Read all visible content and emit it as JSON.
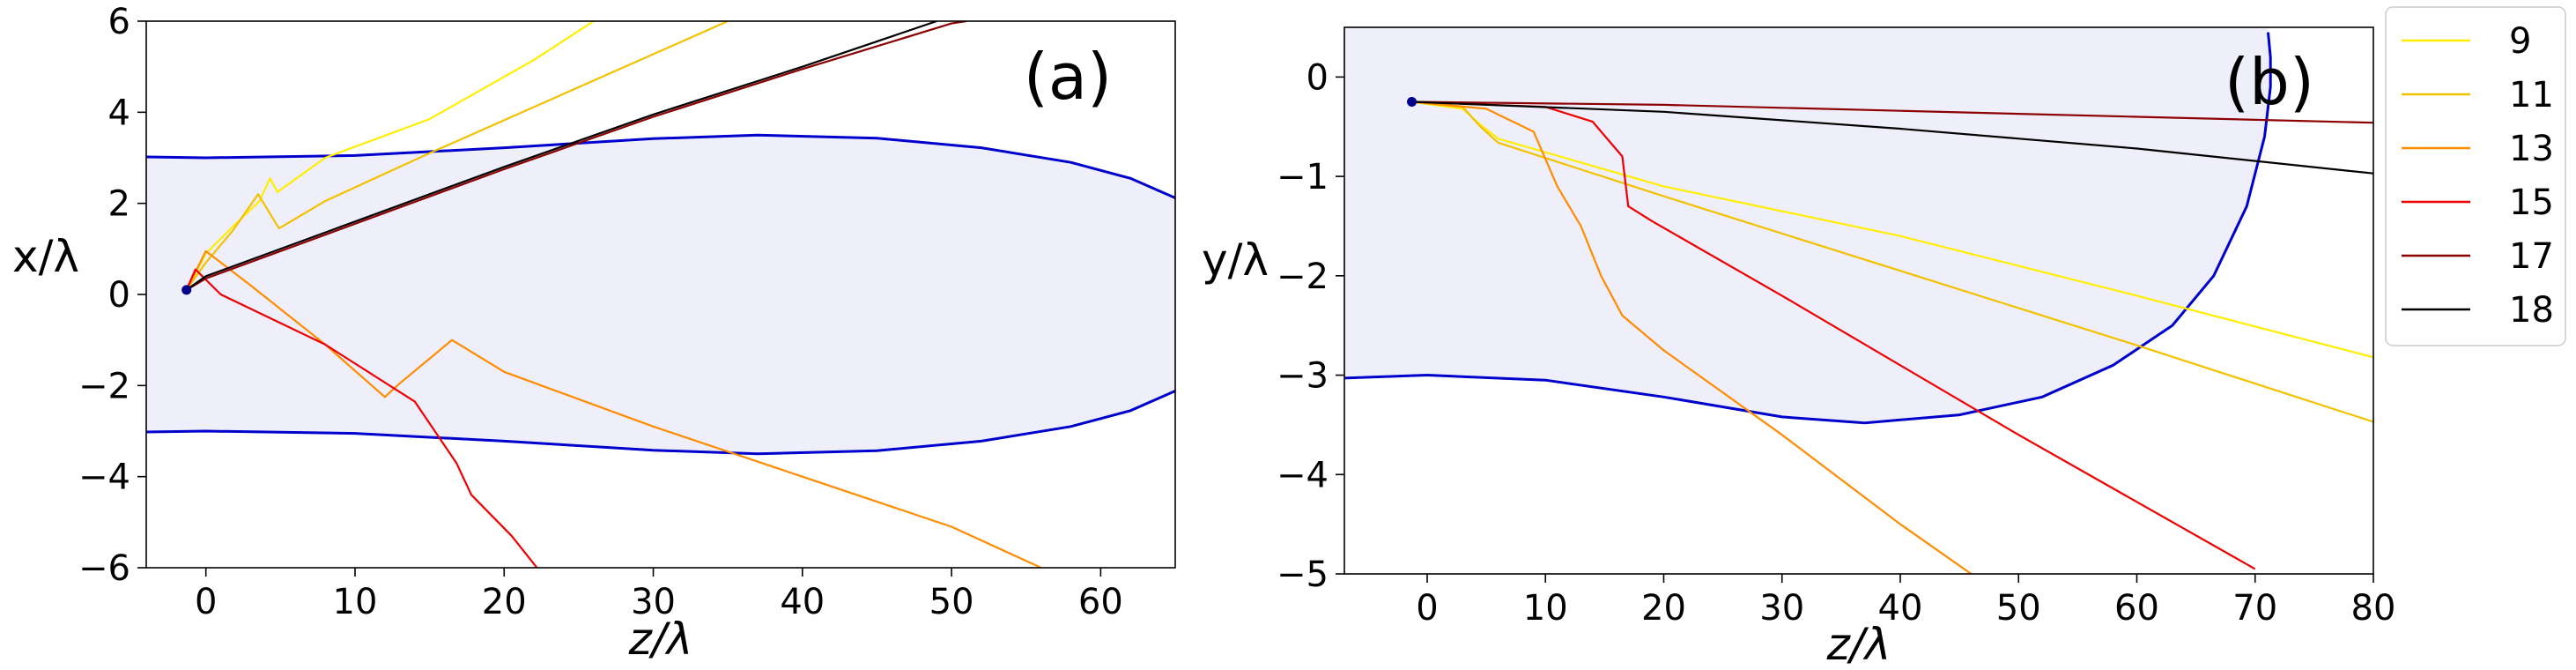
{
  "chart_data": [
    {
      "type": "line",
      "panel_label": "(a)",
      "xlabel": "z/λ",
      "ylabel": "x/λ",
      "xlim": [
        -4,
        65
      ],
      "ylim": [
        -6,
        6
      ],
      "xticks": [
        0,
        10,
        20,
        30,
        40,
        50,
        60
      ],
      "yticks": [
        -6,
        -4,
        -2,
        0,
        2,
        4,
        6
      ],
      "xtick_labels": [
        "0",
        "10",
        "20",
        "30",
        "40",
        "50",
        "60"
      ],
      "ytick_labels": [
        "−6",
        "−4",
        "−2",
        "0",
        "2",
        "4",
        "6"
      ],
      "region": {
        "name": "boundary",
        "color": "#0000cc",
        "fill": "#efeffb",
        "upper": [
          [
            -4,
            3.02
          ],
          [
            0,
            3.0
          ],
          [
            10,
            3.05
          ],
          [
            20,
            3.22
          ],
          [
            30,
            3.42
          ],
          [
            37,
            3.5
          ],
          [
            45,
            3.43
          ],
          [
            52,
            3.22
          ],
          [
            58,
            2.9
          ],
          [
            62,
            2.55
          ],
          [
            65,
            2.12
          ]
        ],
        "lower": [
          [
            -4,
            -3.02
          ],
          [
            0,
            -3.0
          ],
          [
            10,
            -3.05
          ],
          [
            20,
            -3.22
          ],
          [
            30,
            -3.42
          ],
          [
            37,
            -3.5
          ],
          [
            45,
            -3.43
          ],
          [
            52,
            -3.22
          ],
          [
            58,
            -2.9
          ],
          [
            62,
            -2.55
          ],
          [
            65,
            -2.12
          ]
        ]
      },
      "start_point": {
        "x": -1.3,
        "y": 0.1,
        "color": "#00008b"
      },
      "series": [
        {
          "name": "9",
          "color": "#ffee00",
          "points": [
            [
              -1.3,
              0.1
            ],
            [
              0,
              0.9
            ],
            [
              2,
              1.55
            ],
            [
              3.6,
              2.05
            ],
            [
              4.3,
              2.55
            ],
            [
              4.8,
              2.25
            ],
            [
              8,
              3.0
            ],
            [
              15,
              3.85
            ],
            [
              22,
              5.15
            ],
            [
              26,
              6.0
            ]
          ]
        },
        {
          "name": "11",
          "color": "#f2c100",
          "points": [
            [
              -1.3,
              0.1
            ],
            [
              0,
              0.7
            ],
            [
              1.8,
              1.4
            ],
            [
              3.5,
              2.2
            ],
            [
              4.9,
              1.45
            ],
            [
              8,
              2.05
            ],
            [
              15,
              3.1
            ],
            [
              25,
              4.55
            ],
            [
              35,
              6.0
            ]
          ]
        },
        {
          "name": "13",
          "color": "#ff8c00",
          "points": [
            [
              -1.3,
              0.1
            ],
            [
              0,
              0.95
            ],
            [
              3,
              0.2
            ],
            [
              8,
              -1.1
            ],
            [
              12,
              -2.25
            ],
            [
              13,
              -1.95
            ],
            [
              16.5,
              -1.0
            ],
            [
              20,
              -1.7
            ],
            [
              30,
              -2.9
            ],
            [
              40,
              -4.0
            ],
            [
              50,
              -5.1
            ],
            [
              56,
              -6.0
            ]
          ]
        },
        {
          "name": "15",
          "color": "#ee0000",
          "points": [
            [
              -1.3,
              0.1
            ],
            [
              -0.7,
              0.55
            ],
            [
              1,
              0.0
            ],
            [
              8,
              -1.1
            ],
            [
              14,
              -2.35
            ],
            [
              16.8,
              -3.7
            ],
            [
              17.8,
              -4.4
            ],
            [
              20.5,
              -5.3
            ],
            [
              22.2,
              -6.0
            ]
          ]
        },
        {
          "name": "17",
          "color": "#8b0000",
          "points": [
            [
              -1.3,
              0.1
            ],
            [
              0,
              0.35
            ],
            [
              10,
              1.55
            ],
            [
              20,
              2.75
            ],
            [
              30,
              3.9
            ],
            [
              40,
              4.95
            ],
            [
              50,
              5.95
            ],
            [
              51,
              6.0
            ]
          ]
        },
        {
          "name": "18",
          "color": "#000000",
          "points": [
            [
              -1.3,
              0.1
            ],
            [
              0,
              0.4
            ],
            [
              10,
              1.6
            ],
            [
              20,
              2.8
            ],
            [
              30,
              3.95
            ],
            [
              40,
              5.0
            ],
            [
              49,
              6.0
            ]
          ]
        }
      ]
    },
    {
      "type": "line",
      "panel_label": "(b)",
      "xlabel": "z/λ",
      "ylabel": "y/λ",
      "xlim": [
        -7,
        80
      ],
      "ylim": [
        -5,
        0.5
      ],
      "xticks": [
        0,
        10,
        20,
        30,
        40,
        50,
        60,
        70,
        80
      ],
      "yticks": [
        -5,
        -4,
        -3,
        -2,
        -1,
        0
      ],
      "xtick_labels": [
        "0",
        "10",
        "20",
        "30",
        "40",
        "50",
        "60",
        "70",
        "80"
      ],
      "ytick_labels": [
        "−5",
        "−4",
        "−3",
        "−2",
        "−1",
        "0"
      ],
      "region": {
        "name": "boundary",
        "color": "#0000cc",
        "fill": "#efeffb",
        "path": [
          [
            -7,
            -3.03
          ],
          [
            0,
            -3.0
          ],
          [
            10,
            -3.05
          ],
          [
            20,
            -3.22
          ],
          [
            30,
            -3.42
          ],
          [
            37,
            -3.48
          ],
          [
            45,
            -3.4
          ],
          [
            52,
            -3.22
          ],
          [
            58,
            -2.9
          ],
          [
            63,
            -2.5
          ],
          [
            66.5,
            -2.0
          ],
          [
            69.3,
            -1.3
          ],
          [
            70.8,
            -0.6
          ],
          [
            71.3,
            -0.1
          ],
          [
            71.3,
            0.2
          ],
          [
            71.1,
            0.45
          ]
        ]
      },
      "start_point": {
        "x": -1.3,
        "y": -0.25,
        "color": "#00008b"
      },
      "series": [
        {
          "name": "9",
          "color": "#ffee00",
          "points": [
            [
              -1.3,
              -0.25
            ],
            [
              3,
              -0.32
            ],
            [
              4.5,
              -0.48
            ],
            [
              6,
              -0.62
            ],
            [
              20,
              -1.1
            ],
            [
              40,
              -1.6
            ],
            [
              60,
              -2.2
            ],
            [
              80,
              -2.82
            ]
          ]
        },
        {
          "name": "11",
          "color": "#f2c100",
          "points": [
            [
              -1.3,
              -0.25
            ],
            [
              3,
              -0.3
            ],
            [
              4.5,
              -0.5
            ],
            [
              6,
              -0.66
            ],
            [
              20,
              -1.2
            ],
            [
              40,
              -1.95
            ],
            [
              60,
              -2.7
            ],
            [
              80,
              -3.47
            ]
          ]
        },
        {
          "name": "13",
          "color": "#ff8c00",
          "points": [
            [
              -1.3,
              -0.25
            ],
            [
              5,
              -0.32
            ],
            [
              9,
              -0.55
            ],
            [
              11,
              -1.1
            ],
            [
              13,
              -1.5
            ],
            [
              14.7,
              -2.0
            ],
            [
              16.5,
              -2.4
            ],
            [
              20,
              -2.75
            ],
            [
              30,
              -3.6
            ],
            [
              40,
              -4.5
            ],
            [
              46,
              -5.0
            ]
          ]
        },
        {
          "name": "15",
          "color": "#ee0000",
          "points": [
            [
              -1.3,
              -0.25
            ],
            [
              10,
              -0.3
            ],
            [
              14,
              -0.45
            ],
            [
              16.5,
              -0.8
            ],
            [
              17,
              -1.3
            ],
            [
              19,
              -1.45
            ],
            [
              30,
              -2.2
            ],
            [
              50,
              -3.6
            ],
            [
              70,
              -4.95
            ]
          ]
        },
        {
          "name": "17",
          "color": "#8b0000",
          "points": [
            [
              -1.3,
              -0.25
            ],
            [
              20,
              -0.28
            ],
            [
              40,
              -0.34
            ],
            [
              60,
              -0.4
            ],
            [
              80,
              -0.46
            ]
          ]
        },
        {
          "name": "18",
          "color": "#000000",
          "points": [
            [
              -1.3,
              -0.25
            ],
            [
              20,
              -0.35
            ],
            [
              40,
              -0.52
            ],
            [
              60,
              -0.72
            ],
            [
              80,
              -0.97
            ]
          ]
        }
      ]
    }
  ],
  "legend": {
    "placement": "right",
    "entries": [
      {
        "label": "9",
        "color": "#ffee00"
      },
      {
        "label": "11",
        "color": "#f2c100"
      },
      {
        "label": "13",
        "color": "#ff8c00"
      },
      {
        "label": "15",
        "color": "#ee0000"
      },
      {
        "label": "17",
        "color": "#8b0000"
      },
      {
        "label": "18",
        "color": "#000000"
      }
    ]
  }
}
